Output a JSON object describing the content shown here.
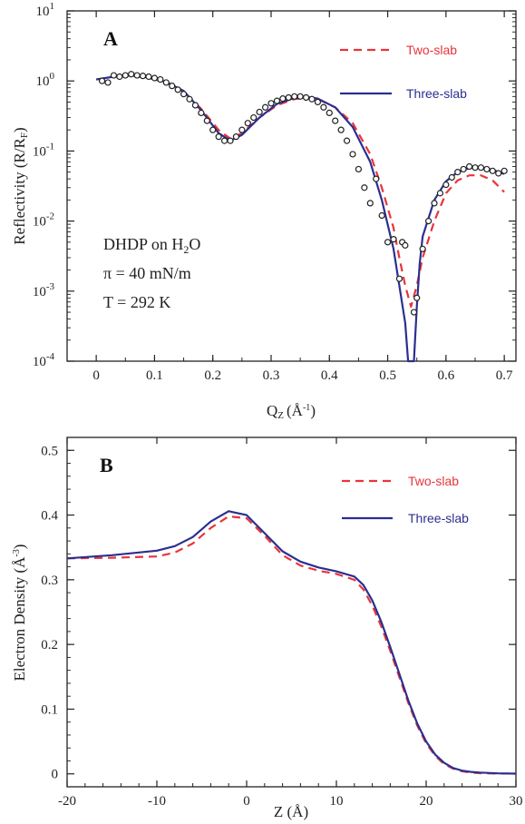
{
  "chart_data": [
    {
      "panel": "A",
      "type": "line",
      "xlabel": "Q",
      "xlabel_sub": "Z",
      "xlabel_unit_prefix": "(Å",
      "xlabel_unit_sup": "-1",
      "xlabel_unit_suffix": ")",
      "ylabel_prefix": "Reflectivity (R/R",
      "ylabel_sub": "F",
      "ylabel_suffix": ")",
      "xlim": [
        -0.05,
        0.72
      ],
      "ylim": [
        0.0001,
        10
      ],
      "yscale": "log",
      "x_ticks": [
        0,
        0.1,
        0.2,
        0.3,
        0.4,
        0.5,
        0.6,
        0.7
      ],
      "x_tick_labels": [
        "0",
        "0.1",
        "0.2",
        "0.3",
        "0.4",
        "0.5",
        "0.6",
        "0.7"
      ],
      "y_ticks": [
        {
          "value": 10,
          "base": "10",
          "exp": "1"
        },
        {
          "value": 1,
          "base": "10",
          "exp": "0"
        },
        {
          "value": 0.1,
          "base": "10",
          "exp": "-1"
        },
        {
          "value": 0.01,
          "base": "10",
          "exp": "-2"
        },
        {
          "value": 0.001,
          "base": "10",
          "exp": "-3"
        },
        {
          "value": 0.0001,
          "base": "10",
          "exp": "-4"
        }
      ],
      "legend_position": "top-right",
      "annotations": [
        {
          "text": "DHDP  on  H",
          "sub": "2",
          "tail": "O"
        },
        {
          "text": "π = 40 mN/m"
        },
        {
          "text": "T = 292 K"
        }
      ],
      "series": [
        {
          "name": "Two-slab",
          "color": "#e8343a",
          "style": "dashed",
          "x": [
            0,
            0.03,
            0.06,
            0.09,
            0.12,
            0.15,
            0.18,
            0.21,
            0.23,
            0.25,
            0.28,
            0.31,
            0.34,
            0.36,
            0.38,
            0.41,
            0.44,
            0.47,
            0.49,
            0.51,
            0.52,
            0.53,
            0.54,
            0.55,
            0.56,
            0.58,
            0.6,
            0.62,
            0.64,
            0.66,
            0.68,
            0.7
          ],
          "y": [
            1.05,
            1.15,
            1.2,
            1.1,
            0.95,
            0.7,
            0.4,
            0.2,
            0.15,
            0.18,
            0.3,
            0.45,
            0.55,
            0.57,
            0.55,
            0.42,
            0.25,
            0.09,
            0.03,
            0.008,
            0.003,
            0.0012,
            0.0006,
            0.0012,
            0.003,
            0.01,
            0.025,
            0.038,
            0.045,
            0.045,
            0.038,
            0.026
          ]
        },
        {
          "name": "Three-slab",
          "color": "#2b2f8f",
          "style": "solid",
          "x": [
            0,
            0.03,
            0.06,
            0.09,
            0.12,
            0.15,
            0.18,
            0.21,
            0.23,
            0.25,
            0.28,
            0.31,
            0.34,
            0.36,
            0.38,
            0.41,
            0.44,
            0.47,
            0.49,
            0.51,
            0.52,
            0.53,
            0.535,
            0.54,
            0.545,
            0.55,
            0.555,
            0.56,
            0.58,
            0.6,
            0.62,
            0.64,
            0.66,
            0.68,
            0.7
          ],
          "y": [
            1.05,
            1.15,
            1.2,
            1.12,
            0.97,
            0.72,
            0.38,
            0.18,
            0.14,
            0.17,
            0.3,
            0.47,
            0.57,
            0.59,
            0.56,
            0.42,
            0.22,
            0.07,
            0.02,
            0.004,
            0.0012,
            0.00035,
            0.0001,
            8e-05,
            0.0001,
            0.0006,
            0.0025,
            0.006,
            0.02,
            0.037,
            0.05,
            0.057,
            0.058,
            0.054,
            0.047
          ]
        }
      ],
      "measured_points": {
        "x": [
          0.01,
          0.02,
          0.03,
          0.04,
          0.05,
          0.06,
          0.07,
          0.08,
          0.09,
          0.1,
          0.11,
          0.12,
          0.13,
          0.14,
          0.15,
          0.16,
          0.17,
          0.18,
          0.19,
          0.2,
          0.21,
          0.22,
          0.23,
          0.24,
          0.25,
          0.26,
          0.27,
          0.28,
          0.29,
          0.3,
          0.31,
          0.32,
          0.33,
          0.34,
          0.35,
          0.36,
          0.37,
          0.38,
          0.39,
          0.4,
          0.41,
          0.42,
          0.43,
          0.44,
          0.45,
          0.46,
          0.47,
          0.48,
          0.49,
          0.5,
          0.51,
          0.52,
          0.525,
          0.53,
          0.545,
          0.55,
          0.56,
          0.57,
          0.58,
          0.59,
          0.6,
          0.61,
          0.62,
          0.63,
          0.64,
          0.65,
          0.66,
          0.67,
          0.68,
          0.69,
          0.7
        ],
        "y": [
          1.0,
          0.95,
          1.2,
          1.15,
          1.2,
          1.25,
          1.2,
          1.18,
          1.15,
          1.1,
          1.05,
          0.95,
          0.85,
          0.75,
          0.65,
          0.55,
          0.45,
          0.35,
          0.27,
          0.2,
          0.16,
          0.14,
          0.14,
          0.16,
          0.2,
          0.25,
          0.3,
          0.36,
          0.42,
          0.48,
          0.52,
          0.56,
          0.58,
          0.6,
          0.6,
          0.58,
          0.55,
          0.5,
          0.42,
          0.35,
          0.27,
          0.2,
          0.14,
          0.09,
          0.055,
          0.03,
          0.018,
          0.04,
          0.012,
          0.005,
          0.0055,
          0.0015,
          0.005,
          0.0045,
          0.0005,
          0.0008,
          0.004,
          0.01,
          0.018,
          0.025,
          0.033,
          0.042,
          0.05,
          0.055,
          0.06,
          0.058,
          0.058,
          0.055,
          0.052,
          0.048,
          0.052
        ]
      }
    },
    {
      "panel": "B",
      "type": "line",
      "xlabel": "Z (Å)",
      "ylabel_prefix": "Electron Density (Å",
      "ylabel_sup": "-3",
      "ylabel_suffix": ")",
      "xlim": [
        -20,
        30
      ],
      "ylim": [
        -0.02,
        0.52
      ],
      "x_ticks": [
        -20,
        -10,
        0,
        10,
        20,
        30
      ],
      "x_tick_labels": [
        "-20",
        "-10",
        "0",
        "10",
        "20",
        "30"
      ],
      "y_ticks": [
        0,
        0.1,
        0.2,
        0.3,
        0.4,
        0.5
      ],
      "y_tick_labels": [
        "0",
        "0.1",
        "0.2",
        "0.3",
        "0.4",
        "0.5"
      ],
      "legend_position": "top-right",
      "series": [
        {
          "name": "Two-slab",
          "color": "#e8343a",
          "style": "dashed",
          "x": [
            -20,
            -15,
            -10,
            -8,
            -6,
            -4,
            -2,
            0,
            2,
            4,
            6,
            8,
            10,
            12,
            13,
            14,
            15,
            16,
            17,
            18,
            19,
            20,
            21,
            22,
            23,
            24,
            25,
            26,
            28,
            30
          ],
          "y": [
            0.333,
            0.334,
            0.336,
            0.342,
            0.356,
            0.38,
            0.398,
            0.395,
            0.368,
            0.338,
            0.322,
            0.314,
            0.309,
            0.3,
            0.285,
            0.26,
            0.228,
            0.19,
            0.15,
            0.11,
            0.075,
            0.047,
            0.028,
            0.015,
            0.008,
            0.004,
            0.002,
            0.001,
            0.0005,
            0.0003
          ]
        },
        {
          "name": "Three-slab",
          "color": "#2b2f8f",
          "style": "solid",
          "x": [
            -20,
            -15,
            -10,
            -8,
            -6,
            -4,
            -2,
            0,
            2,
            4,
            6,
            8,
            10,
            12,
            13,
            14,
            15,
            16,
            17,
            18,
            19,
            20,
            21,
            22,
            23,
            24,
            25,
            26,
            28,
            30
          ],
          "y": [
            0.333,
            0.338,
            0.345,
            0.352,
            0.366,
            0.39,
            0.406,
            0.4,
            0.372,
            0.344,
            0.328,
            0.319,
            0.313,
            0.305,
            0.292,
            0.268,
            0.235,
            0.196,
            0.155,
            0.114,
            0.078,
            0.05,
            0.03,
            0.017,
            0.009,
            0.005,
            0.003,
            0.002,
            0.0008,
            0.0004
          ]
        }
      ]
    }
  ]
}
